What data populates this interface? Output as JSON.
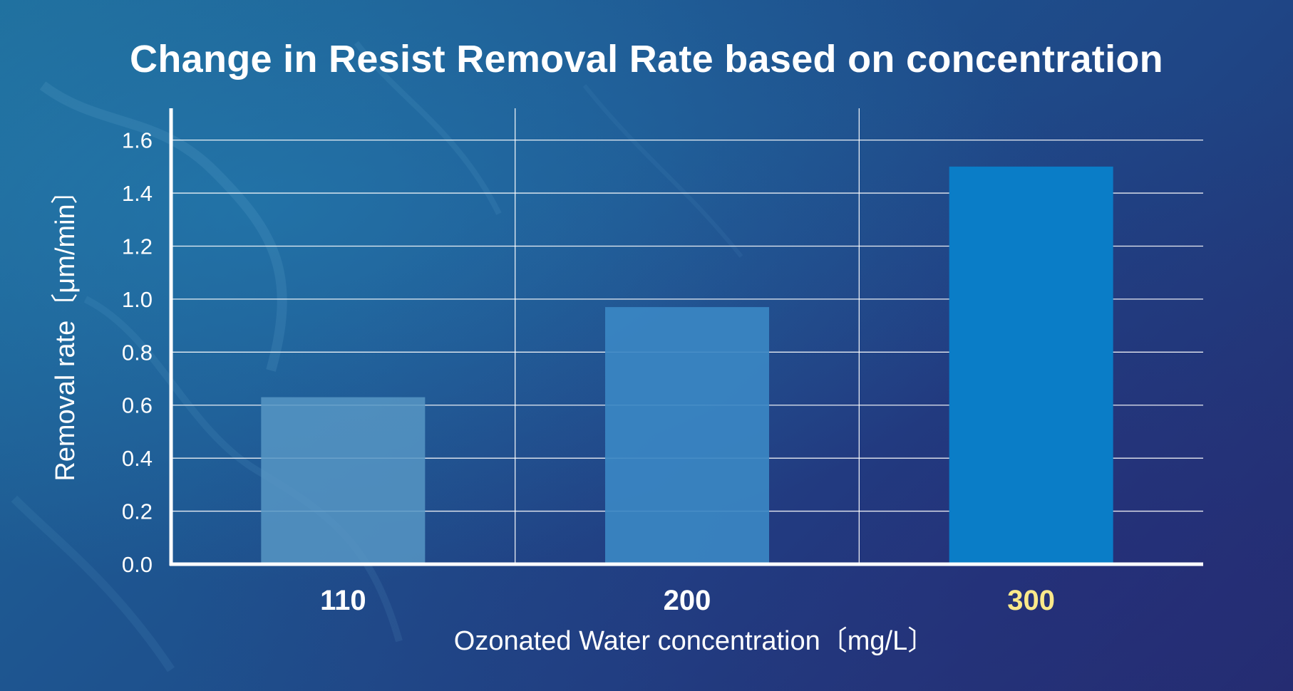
{
  "chart_data": {
    "type": "bar",
    "title": "Change in Resist Removal Rate based on concentration",
    "xlabel": "Ozonated Water concentration〔mg/L〕",
    "ylabel": "Removal rate〔μm/min〕",
    "categories": [
      "110",
      "200",
      "300"
    ],
    "values": [
      0.63,
      0.97,
      1.5
    ],
    "ylim": [
      0,
      1.72
    ],
    "yticks": [
      "0.0",
      "0.2",
      "0.4",
      "0.6",
      "0.8",
      "1.0",
      "1.2",
      "1.4",
      "1.6"
    ],
    "grid": true,
    "bar_colors": [
      "#5796c4",
      "#3b87c3",
      "#0a7dc7"
    ],
    "category_label_colors": [
      "#ffffff",
      "#ffffff",
      "#fbe98a"
    ]
  }
}
